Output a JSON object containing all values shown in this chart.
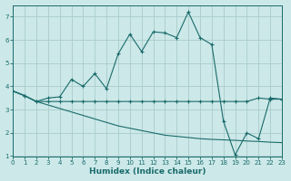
{
  "xlabel": "Humidex (Indice chaleur)",
  "background_color": "#cce8e8",
  "grid_color": "#aacccc",
  "line_color": "#1a6b6b",
  "xlim": [
    0,
    23
  ],
  "ylim": [
    1,
    7.5
  ],
  "yticks": [
    1,
    2,
    3,
    4,
    5,
    6,
    7
  ],
  "xticks": [
    0,
    1,
    2,
    3,
    4,
    5,
    6,
    7,
    8,
    9,
    10,
    11,
    12,
    13,
    14,
    15,
    16,
    17,
    18,
    19,
    20,
    21,
    22,
    23
  ],
  "curve_flat_x": [
    0,
    1,
    2,
    3,
    4,
    5,
    6,
    7,
    8,
    9,
    10,
    11,
    12,
    13,
    14,
    15,
    16,
    17,
    18,
    19,
    20,
    21,
    22,
    23
  ],
  "curve_flat_y": [
    3.8,
    3.6,
    3.35,
    3.35,
    3.35,
    3.35,
    3.35,
    3.35,
    3.35,
    3.35,
    3.35,
    3.35,
    3.35,
    3.35,
    3.35,
    3.35,
    3.35,
    3.35,
    3.35,
    3.35,
    3.35,
    3.5,
    3.45,
    3.45
  ],
  "curve_diag_x": [
    0,
    1,
    2,
    3,
    4,
    5,
    6,
    7,
    8,
    9,
    10,
    11,
    12,
    13,
    14,
    15,
    16,
    17,
    18,
    19,
    20,
    21,
    22,
    23
  ],
  "curve_diag_y": [
    3.8,
    3.6,
    3.35,
    3.2,
    3.05,
    2.9,
    2.75,
    2.6,
    2.45,
    2.3,
    2.2,
    2.1,
    2.0,
    1.9,
    1.85,
    1.8,
    1.75,
    1.72,
    1.7,
    1.68,
    1.65,
    1.63,
    1.6,
    1.58
  ],
  "curve_main_x": [
    0,
    1,
    2,
    3,
    4,
    5,
    6,
    7,
    8,
    9,
    10,
    11,
    12,
    13,
    14,
    15,
    16,
    17,
    18,
    19,
    20,
    21,
    22,
    23
  ],
  "curve_main_y": [
    3.8,
    3.6,
    3.35,
    3.5,
    3.55,
    4.3,
    4.0,
    4.55,
    3.9,
    5.4,
    6.25,
    5.5,
    6.35,
    6.3,
    6.1,
    7.2,
    6.1,
    5.8,
    2.5,
    1.05,
    2.0,
    1.75,
    3.5,
    3.45
  ]
}
